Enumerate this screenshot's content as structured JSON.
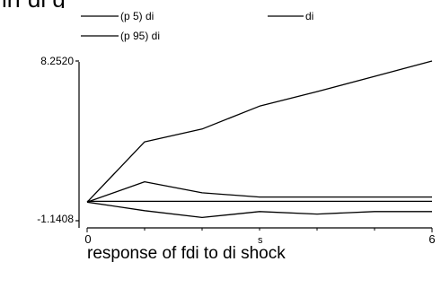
{
  "chart_data": {
    "type": "line",
    "title": "irf di g",
    "caption": "response of fdi to di shock",
    "xlabel": "s",
    "ylabel": "",
    "x": [
      0,
      1,
      2,
      3,
      4,
      5,
      6
    ],
    "xticks": [
      "0",
      "6"
    ],
    "xlim": [
      0,
      6
    ],
    "yticks": [
      "8.2520",
      "-1.1408"
    ],
    "ylim": [
      -1.1408,
      8.252
    ],
    "legend_position": "top",
    "series": [
      {
        "name": "(p 5) di",
        "color": "#000000",
        "values": [
          -0.05,
          -0.55,
          -0.95,
          -0.6,
          -0.75,
          -0.6,
          -0.6
        ]
      },
      {
        "name": "di",
        "color": "#000000",
        "values": [
          -0.05,
          1.15,
          0.5,
          0.25,
          0.25,
          0.25,
          0.25
        ]
      },
      {
        "name": "(p 95) di",
        "color": "#000000",
        "values": [
          -0.05,
          3.5,
          4.25,
          5.6,
          6.45,
          7.35,
          8.25
        ]
      }
    ],
    "zero_line": {
      "value": 0
    }
  }
}
